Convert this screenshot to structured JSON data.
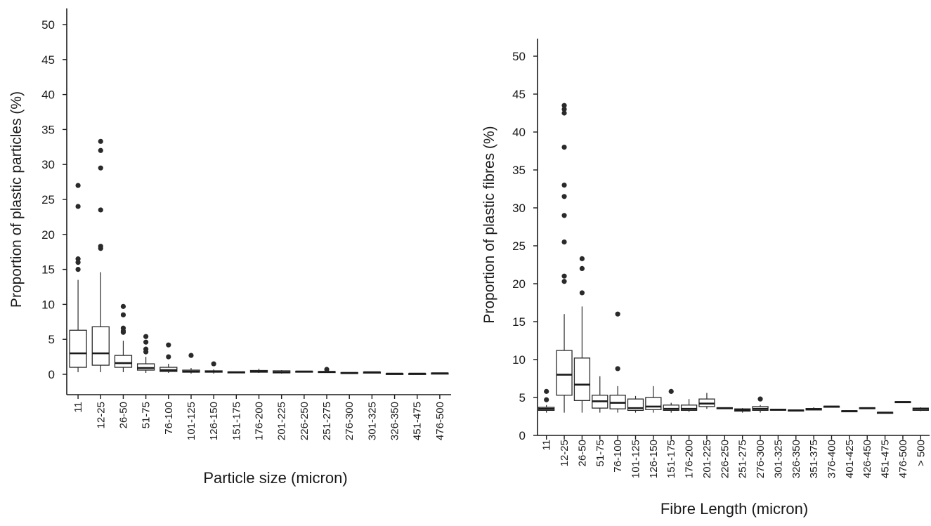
{
  "chart_data": [
    {
      "type": "box",
      "title": "",
      "xlabel": "Particle size (micron)",
      "ylabel": "Proportion of plastic particles (%)",
      "ylim": [
        0,
        50
      ],
      "yticks": [
        0,
        5,
        10,
        15,
        20,
        25,
        30,
        35,
        40,
        45,
        50
      ],
      "grid": false,
      "categories": [
        "11",
        "12-25",
        "26-50",
        "51-75",
        "76-100",
        "101-125",
        "126-150",
        "151-175",
        "176-200",
        "201-225",
        "226-250",
        "251-275",
        "276-300",
        "301-325",
        "326-350",
        "451-475",
        "476-500"
      ],
      "boxes": [
        {
          "min": 0.3,
          "q1": 1.0,
          "median": 3.0,
          "q3": 6.3,
          "max": 13.5,
          "outliers": [
            15.0,
            16.0,
            16.5,
            24.0,
            27.0
          ]
        },
        {
          "min": 0.3,
          "q1": 1.3,
          "median": 3.0,
          "q3": 6.8,
          "max": 14.6,
          "outliers": [
            18.0,
            18.3,
            23.5,
            29.5,
            32.0,
            33.3
          ]
        },
        {
          "min": 0.3,
          "q1": 1.0,
          "median": 1.6,
          "q3": 2.7,
          "max": 4.8,
          "outliers": [
            6.0,
            6.2,
            6.6,
            8.5,
            9.7
          ]
        },
        {
          "min": 0.2,
          "q1": 0.6,
          "median": 0.9,
          "q3": 1.5,
          "max": 2.5,
          "outliers": [
            3.2,
            3.6,
            4.6,
            5.4
          ]
        },
        {
          "min": 0.2,
          "q1": 0.4,
          "median": 0.6,
          "q3": 1.0,
          "max": 1.5,
          "outliers": [
            2.5,
            4.2
          ]
        },
        {
          "min": 0.1,
          "q1": 0.3,
          "median": 0.4,
          "q3": 0.6,
          "max": 0.9,
          "outliers": [
            2.7
          ]
        },
        {
          "min": 0.1,
          "q1": 0.3,
          "median": 0.4,
          "q3": 0.5,
          "max": 0.7,
          "outliers": [
            1.5
          ]
        },
        {
          "min": 0.2,
          "q1": 0.25,
          "median": 0.3,
          "q3": 0.35,
          "max": 0.4,
          "outliers": []
        },
        {
          "min": 0.2,
          "q1": 0.3,
          "median": 0.4,
          "q3": 0.55,
          "max": 0.8,
          "outliers": []
        },
        {
          "min": 0.1,
          "q1": 0.2,
          "median": 0.3,
          "q3": 0.5,
          "max": 0.6,
          "outliers": []
        },
        {
          "min": 0.3,
          "q1": 0.35,
          "median": 0.4,
          "q3": 0.45,
          "max": 0.5,
          "outliers": []
        },
        {
          "min": 0.2,
          "q1": 0.3,
          "median": 0.35,
          "q3": 0.4,
          "max": 0.5,
          "outliers": [
            0.7
          ]
        },
        {
          "min": 0.1,
          "q1": 0.15,
          "median": 0.2,
          "q3": 0.25,
          "max": 0.3,
          "outliers": []
        },
        {
          "min": 0.25,
          "q1": 0.28,
          "median": 0.3,
          "q3": 0.32,
          "max": 0.35,
          "outliers": []
        },
        {
          "min": 0.05,
          "q1": 0.08,
          "median": 0.1,
          "q3": 0.12,
          "max": 0.15,
          "outliers": []
        },
        {
          "min": 0.05,
          "q1": 0.08,
          "median": 0.1,
          "q3": 0.12,
          "max": 0.15,
          "outliers": []
        },
        {
          "min": 0.1,
          "q1": 0.13,
          "median": 0.15,
          "q3": 0.18,
          "max": 0.2,
          "outliers": []
        }
      ]
    },
    {
      "type": "box",
      "title": "",
      "xlabel": "Fibre Length (micron)",
      "ylabel": "Proportion of plastic fibres (%)",
      "ylim": [
        0,
        50
      ],
      "yticks": [
        0,
        5,
        10,
        15,
        20,
        25,
        30,
        35,
        40,
        45,
        50
      ],
      "grid": false,
      "categories": [
        "11",
        "12-25",
        "26-50",
        "51-75",
        "76-100",
        "101-125",
        "126-150",
        "151-175",
        "176-200",
        "201-225",
        "226-250",
        "251-275",
        "276-300",
        "301-325",
        "326-350",
        "351-375",
        "376-400",
        "401-425",
        "426-450",
        "451-475",
        "476-500",
        "> 500"
      ],
      "boxes": [
        {
          "min": 3.0,
          "q1": 3.3,
          "median": 3.5,
          "q3": 3.7,
          "max": 4.0,
          "outliers": [
            4.7,
            5.8
          ]
        },
        {
          "min": 3.0,
          "q1": 5.3,
          "median": 8.0,
          "q3": 11.2,
          "max": 16.0,
          "outliers": [
            20.3,
            21.0,
            25.5,
            29.0,
            31.5,
            33.0,
            38.0,
            42.5,
            43.0,
            43.5
          ]
        },
        {
          "min": 3.0,
          "q1": 4.6,
          "median": 6.7,
          "q3": 10.2,
          "max": 17.0,
          "outliers": [
            18.8,
            22.0,
            23.3
          ]
        },
        {
          "min": 3.0,
          "q1": 3.6,
          "median": 4.5,
          "q3": 5.3,
          "max": 7.8,
          "outliers": []
        },
        {
          "min": 3.0,
          "q1": 3.5,
          "median": 4.3,
          "q3": 5.3,
          "max": 6.5,
          "outliers": [
            8.8,
            16.0
          ]
        },
        {
          "min": 3.0,
          "q1": 3.3,
          "median": 3.6,
          "q3": 4.8,
          "max": 5.2,
          "outliers": []
        },
        {
          "min": 3.0,
          "q1": 3.4,
          "median": 3.8,
          "q3": 5.0,
          "max": 6.5,
          "outliers": []
        },
        {
          "min": 3.0,
          "q1": 3.3,
          "median": 3.5,
          "q3": 4.0,
          "max": 4.3,
          "outliers": [
            5.8
          ]
        },
        {
          "min": 3.1,
          "q1": 3.3,
          "median": 3.5,
          "q3": 4.0,
          "max": 4.8,
          "outliers": []
        },
        {
          "min": 3.5,
          "q1": 3.8,
          "median": 4.2,
          "q3": 4.8,
          "max": 5.6,
          "outliers": []
        },
        {
          "min": 3.5,
          "q1": 3.55,
          "median": 3.6,
          "q3": 3.65,
          "max": 3.7,
          "outliers": []
        },
        {
          "min": 3.0,
          "q1": 3.2,
          "median": 3.35,
          "q3": 3.5,
          "max": 3.6,
          "outliers": []
        },
        {
          "min": 3.0,
          "q1": 3.3,
          "median": 3.5,
          "q3": 3.8,
          "max": 4.0,
          "outliers": [
            4.8
          ]
        },
        {
          "min": 3.3,
          "q1": 3.35,
          "median": 3.4,
          "q3": 3.45,
          "max": 3.5,
          "outliers": []
        },
        {
          "min": 3.2,
          "q1": 3.25,
          "median": 3.3,
          "q3": 3.35,
          "max": 3.4,
          "outliers": []
        },
        {
          "min": 3.3,
          "q1": 3.35,
          "median": 3.45,
          "q3": 3.55,
          "max": 3.7,
          "outliers": []
        },
        {
          "min": 3.7,
          "q1": 3.75,
          "median": 3.8,
          "q3": 3.85,
          "max": 3.9,
          "outliers": []
        },
        {
          "min": 3.1,
          "q1": 3.15,
          "median": 3.2,
          "q3": 3.25,
          "max": 3.3,
          "outliers": []
        },
        {
          "min": 3.5,
          "q1": 3.55,
          "median": 3.6,
          "q3": 3.65,
          "max": 3.7,
          "outliers": []
        },
        {
          "min": 2.9,
          "q1": 2.95,
          "median": 3.0,
          "q3": 3.05,
          "max": 3.1,
          "outliers": []
        },
        {
          "min": 4.3,
          "q1": 4.35,
          "median": 4.4,
          "q3": 4.45,
          "max": 4.5,
          "outliers": []
        },
        {
          "min": 3.2,
          "q1": 3.3,
          "median": 3.5,
          "q3": 3.6,
          "max": 3.7,
          "outliers": []
        }
      ]
    }
  ]
}
